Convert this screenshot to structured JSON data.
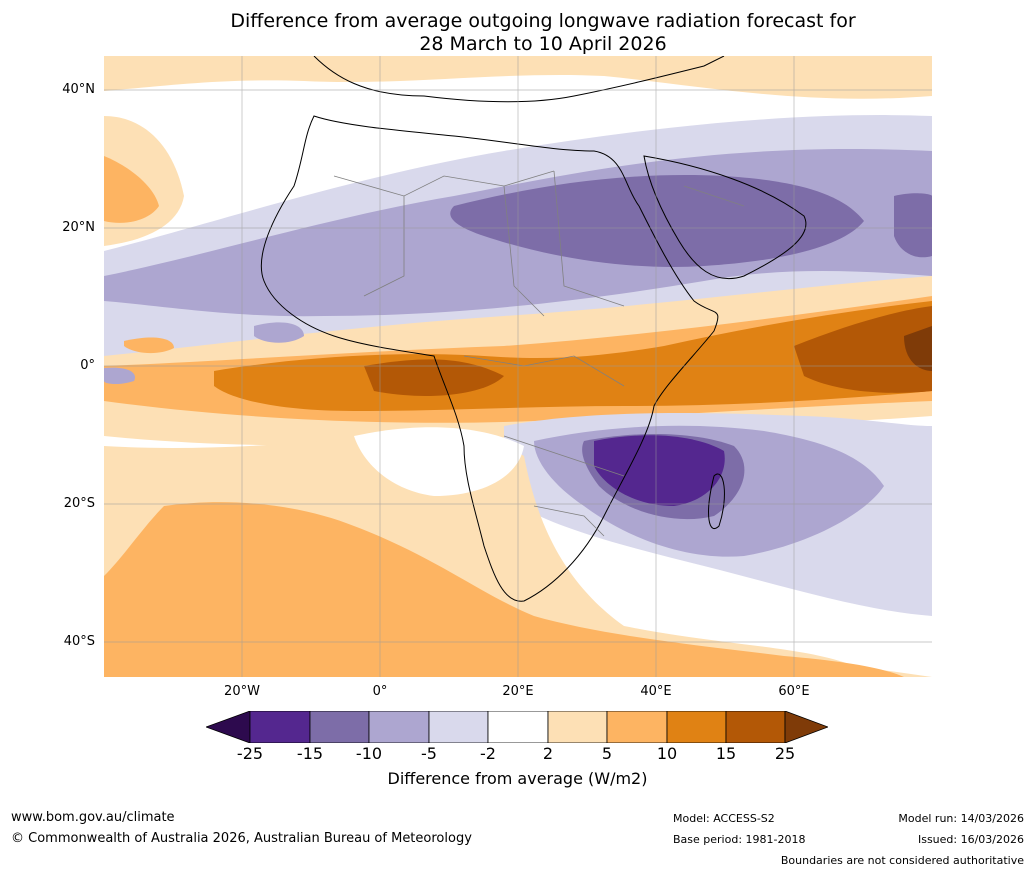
{
  "title": {
    "line1": "Difference from average outgoing longwave radiation forecast for",
    "line2": "28 March to 10 April 2026"
  },
  "map": {
    "lat_labels": [
      "40°N",
      "20°N",
      "0°",
      "20°S",
      "40°S"
    ],
    "lon_labels": [
      "20°W",
      "0°",
      "20°E",
      "40°E",
      "60°E"
    ]
  },
  "colorbar": {
    "title": "Difference from average (W/m2)",
    "ticks": [
      "-25",
      "-15",
      "-10",
      "-5",
      "-2",
      "2",
      "5",
      "10",
      "15",
      "25"
    ],
    "colors": [
      "#2d0a4e",
      "#54278f",
      "#7d6da8",
      "#ada6d0",
      "#d9d9ec",
      "#ffffff",
      "#fde0b5",
      "#fdb462",
      "#e08214",
      "#b35806",
      "#7f3b08"
    ]
  },
  "footer": {
    "url": "www.bom.gov.au/climate",
    "copyright": "© Commonwealth of Australia 2026, Australian Bureau of Meteorology",
    "model": "Model: ACCESS-S2",
    "base": "Base period: 1981-2018",
    "run": "Model run: 14/03/2026",
    "issued": "Issued: 16/03/2026",
    "disclaimer": "Boundaries are not considered authoritative"
  }
}
